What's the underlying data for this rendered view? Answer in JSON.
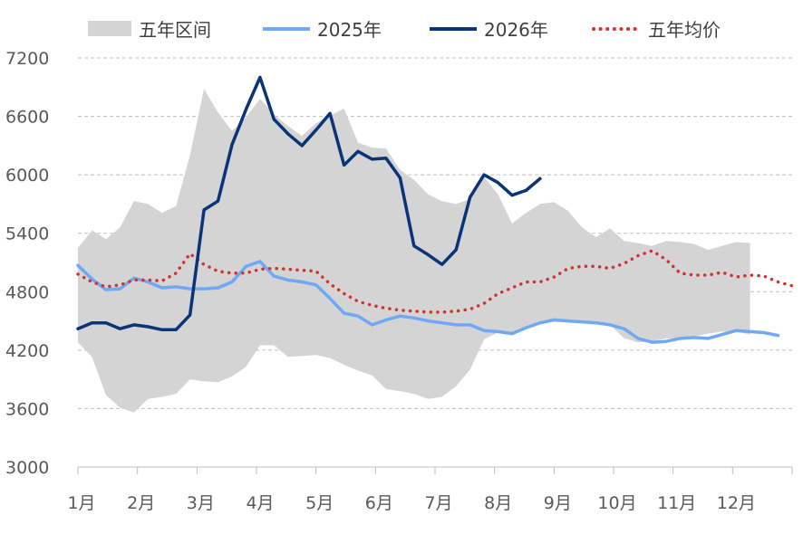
{
  "chart_data": {
    "type": "line",
    "title": "",
    "xlabel": "",
    "ylabel": "",
    "ylim": [
      3000,
      7200
    ],
    "y_ticks": [
      3000,
      3600,
      4200,
      4800,
      5400,
      6000,
      6600,
      7200
    ],
    "months": [
      "1月",
      "2月",
      "3月",
      "4月",
      "5月",
      "6月",
      "7月",
      "8月",
      "9月",
      "10月",
      "11月",
      "12月"
    ],
    "grid": "horizontal-dashed",
    "legend_position": "top",
    "band": {
      "name": "五年区间",
      "color": "#d4d4d4",
      "upper": [
        5250,
        5430,
        5340,
        5460,
        5730,
        5700,
        5610,
        5680,
        6200,
        6880,
        6640,
        6450,
        6590,
        6780,
        6620,
        6500,
        6400,
        6530,
        6610,
        6680,
        6330,
        6280,
        6270,
        6050,
        5950,
        5800,
        5730,
        5700,
        5750,
        5980,
        5800,
        5500,
        5610,
        5700,
        5720,
        5630,
        5460,
        5360,
        5450,
        5320,
        5300,
        5270,
        5320,
        5310,
        5290,
        5230,
        5270,
        5310,
        5300
      ],
      "lower": [
        4280,
        4130,
        3740,
        3610,
        3560,
        3700,
        3720,
        3750,
        3900,
        3880,
        3870,
        3930,
        4030,
        4250,
        4250,
        4130,
        4140,
        4150,
        4120,
        4050,
        3990,
        3940,
        3800,
        3780,
        3750,
        3700,
        3720,
        3830,
        4000,
        4310,
        4380,
        4380,
        4430,
        4480,
        4510,
        4490,
        4480,
        4470,
        4460,
        4320,
        4280,
        4290,
        4320,
        4320,
        4340,
        4370,
        4390,
        4390,
        4360
      ]
    },
    "series": [
      {
        "name": "2025年",
        "color": "#6fa8f5",
        "values": [
          5070,
          4930,
          4820,
          4830,
          4940,
          4900,
          4840,
          4850,
          4830,
          4830,
          4840,
          4900,
          5060,
          5110,
          4960,
          4920,
          4900,
          4870,
          4730,
          4580,
          4550,
          4460,
          4510,
          4550,
          4530,
          4500,
          4480,
          4460,
          4460,
          4400,
          4390,
          4370,
          4430,
          4480,
          4510,
          4500,
          4490,
          4480,
          4460,
          4420,
          4320,
          4280,
          4290,
          4320,
          4330,
          4320,
          4360,
          4400,
          4390,
          4380,
          4350
        ]
      },
      {
        "name": "2026年",
        "color": "#0a3478",
        "values": [
          4420,
          4480,
          4480,
          4420,
          4460,
          4440,
          4410,
          4410,
          4560,
          5640,
          5730,
          6310,
          6670,
          7000,
          6570,
          6420,
          6300,
          6460,
          6630,
          6100,
          6240,
          6160,
          6170,
          5970,
          5270,
          5180,
          5080,
          5230,
          5770,
          6000,
          5920,
          5790,
          5840,
          5960
        ]
      },
      {
        "name": "五年均价",
        "color": "#d0322f",
        "values": [
          4980,
          4900,
          4850,
          4870,
          4920,
          4920,
          4910,
          4990,
          5190,
          5080,
          5010,
          4990,
          4990,
          5030,
          5040,
          5030,
          5020,
          5010,
          4880,
          4780,
          4700,
          4660,
          4630,
          4610,
          4600,
          4590,
          4590,
          4600,
          4620,
          4680,
          4780,
          4840,
          4900,
          4900,
          4950,
          5040,
          5060,
          5060,
          5040,
          5090,
          5170,
          5220,
          5130,
          4990,
          4970,
          4970,
          5000,
          4950,
          4970,
          4960,
          4900,
          4860
        ]
      }
    ]
  }
}
